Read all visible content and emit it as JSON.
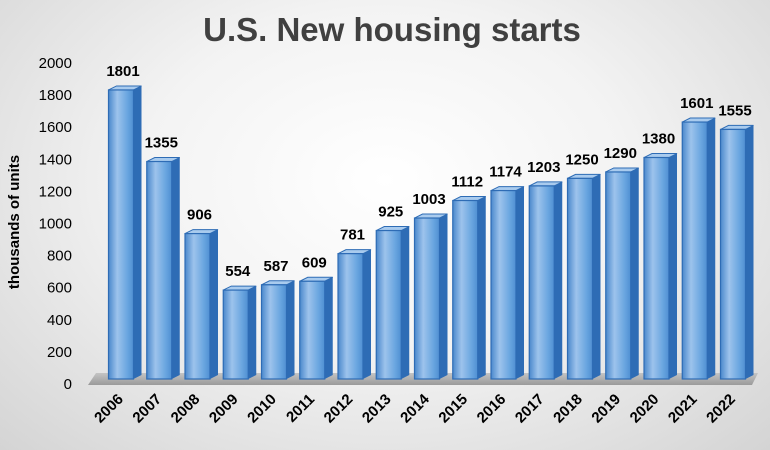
{
  "chart_data": {
    "type": "bar",
    "title": "U.S. New housing starts",
    "xlabel": "",
    "ylabel": "thousands of units",
    "ylim": [
      0,
      2000
    ],
    "yticks": [
      0,
      200,
      400,
      600,
      800,
      1000,
      1200,
      1400,
      1600,
      1800,
      2000
    ],
    "grid": false,
    "legend": "none",
    "categories": [
      "2006",
      "2007",
      "2008",
      "2009",
      "2010",
      "2011",
      "2012",
      "2013",
      "2014",
      "2015",
      "2016",
      "2017",
      "2018",
      "2019",
      "2020",
      "2021",
      "2022"
    ],
    "values": [
      1801,
      1355,
      906,
      554,
      587,
      609,
      781,
      925,
      1003,
      1112,
      1174,
      1203,
      1250,
      1290,
      1380,
      1601,
      1555
    ],
    "data_labels": [
      "1801",
      "1355",
      "906",
      "554",
      "587",
      "609",
      "781",
      "925",
      "1003",
      "1112",
      "1174",
      "1203",
      "1250",
      "1290",
      "1380",
      "1601",
      "1555"
    ],
    "colors": {
      "bar_front": "#5b9bd5",
      "bar_highlight": "#9dc3ec",
      "bar_side": "#2e6cb5",
      "bar_top": "#a9cbee",
      "floor": "#a6a6a6",
      "title": "#404040"
    }
  }
}
